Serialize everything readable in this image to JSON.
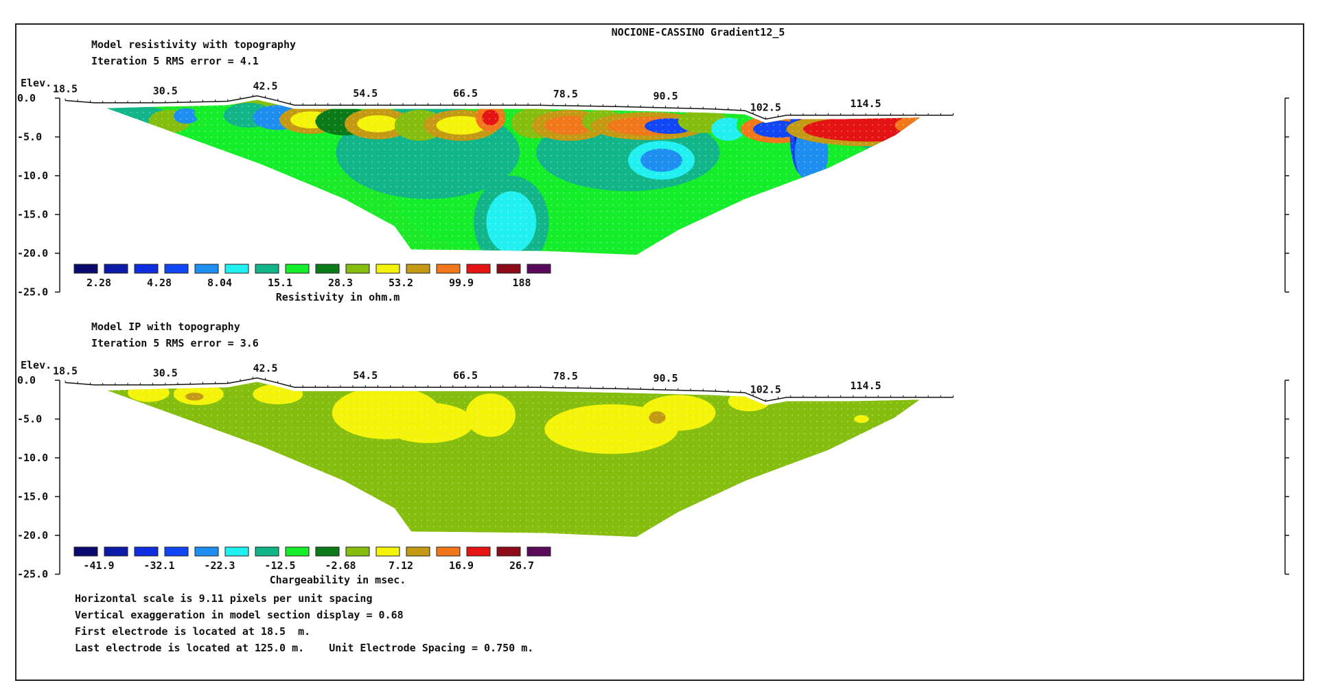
{
  "title": "NOCIONE-CASSINO Gradient12_5",
  "colors": {
    "scale": [
      "#0a0a6e",
      "#0c1aa8",
      "#0e2ee0",
      "#1146f5",
      "#1e8ef0",
      "#22f0f0",
      "#12b48a",
      "#14ee2a",
      "#0b7a18",
      "#86be10",
      "#f4f40a",
      "#c49a14",
      "#f0781a",
      "#e41414",
      "#8c0a1a",
      "#5a0a5a"
    ],
    "ip_fill": "#86be10",
    "ip_high": "#f4f40a",
    "ip_peak": "#c49a14",
    "border": "#222222"
  },
  "chart_data": [
    {
      "type": "heatmap",
      "panel": "resistivity",
      "heading": "Model resistivity with topography",
      "iteration_line": "Iteration 5 RMS error = 4.1",
      "elev_label": "Elev.",
      "xlim": [
        18.5,
        125.0
      ],
      "ylim": [
        -25.0,
        0.0
      ],
      "x_ticks": [
        "18.5",
        "30.5",
        "42.5",
        "54.5",
        "66.5",
        "78.5",
        "90.5",
        "102.5",
        "114.5"
      ],
      "x_tick_values": [
        18.5,
        30.5,
        42.5,
        54.5,
        66.5,
        78.5,
        90.5,
        102.5,
        114.5
      ],
      "y_ticks": [
        "0.0",
        "-5.0",
        "-10.0",
        "-15.0",
        "-20.0",
        "-25.0"
      ],
      "y_tick_values": [
        0,
        -5,
        -10,
        -15,
        -20,
        -25
      ],
      "legend_values": [
        "2.28",
        "4.28",
        "8.04",
        "15.1",
        "28.3",
        "53.2",
        "99.9",
        "188"
      ],
      "legend_title": "Resistivity in ohm.m",
      "rms_error": 4.1,
      "iteration": 5
    },
    {
      "type": "heatmap",
      "panel": "ip",
      "heading": "Model IP with topography",
      "iteration_line": "Iteration 5 RMS error = 3.6",
      "elev_label": "Elev.",
      "xlim": [
        18.5,
        125.0
      ],
      "ylim": [
        -25.0,
        0.0
      ],
      "x_ticks": [
        "18.5",
        "30.5",
        "42.5",
        "54.5",
        "66.5",
        "78.5",
        "90.5",
        "102.5",
        "114.5"
      ],
      "x_tick_values": [
        18.5,
        30.5,
        42.5,
        54.5,
        66.5,
        78.5,
        90.5,
        102.5,
        114.5
      ],
      "y_ticks": [
        "0.0",
        "-5.0",
        "-10.0",
        "-15.0",
        "-20.0",
        "-25.0"
      ],
      "y_tick_values": [
        0,
        -5,
        -10,
        -15,
        -20,
        -25
      ],
      "legend_values": [
        "-41.9",
        "-32.1",
        "-22.3",
        "-12.5",
        "-2.68",
        "7.12",
        "16.9",
        "26.7"
      ],
      "legend_title": "Chargeability in msec.",
      "rms_error": 3.6,
      "iteration": 5
    }
  ],
  "footer_lines": [
    "Horizontal scale is 9.11 pixels per unit spacing",
    "Vertical exaggeration in model section display = 0.68",
    "First electrode is located at 18.5  m.",
    "Last electrode is located at 125.0 m.    Unit Electrode Spacing = 0.750 m."
  ]
}
